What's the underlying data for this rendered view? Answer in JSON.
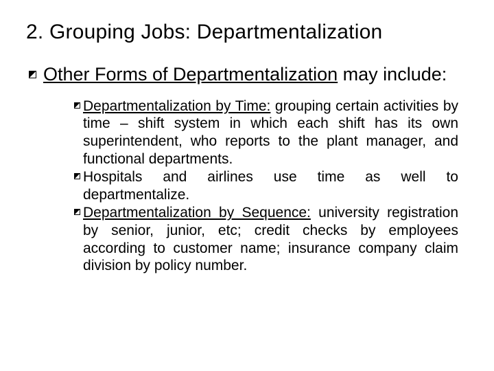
{
  "title": "2.  Grouping Jobs:  Departmentalization",
  "level1": {
    "underlined": "Other Forms of  Departmentalization",
    "rest": " may include:"
  },
  "items": [
    {
      "lead": "Departmentalization by Time:",
      "body": "  grouping certain activities by time – shift system in which each shift has its own superintendent, who reports to the plant manager, and functional departments."
    },
    {
      "lead": "",
      "body_pre": "Hospitals and airlines use time as well to",
      "body_last": "departmentalize."
    },
    {
      "lead": "Departmentalization by Sequence:",
      "body": "   university registration by senior, junior, etc; credit checks by employees according to customer name; insurance company claim division by policy number."
    }
  ],
  "colors": {
    "text": "#000000",
    "background": "#ffffff"
  },
  "fonts": {
    "title_size": 30,
    "level1_size": 27,
    "level2_size": 21
  }
}
